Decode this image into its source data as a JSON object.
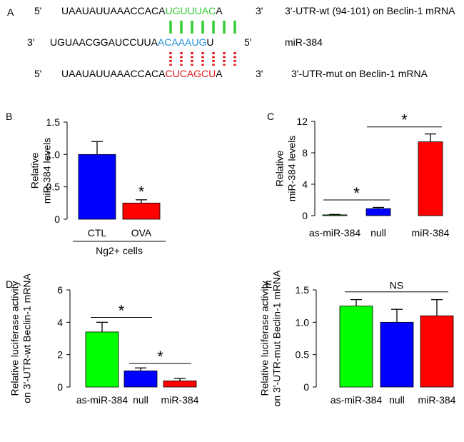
{
  "panel_a": {
    "label": "A",
    "wt": {
      "prime5": "5'",
      "seq_black": "UAAUAUUAAACCACA",
      "seq_site": "UGUUUAC",
      "seq_tail": "A",
      "prime3": "3'",
      "desc": "3'-UTR-wt (94-101) on Beclin-1 mRNA"
    },
    "mir": {
      "prime3": "3'",
      "seq_black": "UGUAACGGAUCCUUA",
      "seq_site": "ACAAAUG",
      "seq_tail": "U",
      "prime5": "5'",
      "desc": "miR-384"
    },
    "mut": {
      "prime5": "5'",
      "seq_black": "UAAUAUUAAACCACA",
      "seq_site": "CUCAGCU",
      "seq_tail": "A",
      "prime3": "3'",
      "desc": "3'-UTR-mut on Beclin-1 mRNA"
    },
    "colors": {
      "wt_site": "#33cc33",
      "mir_site": "#1f8fd6",
      "mut_site": "#e41a1c"
    }
  },
  "chart_data": [
    {
      "panel": "B",
      "type": "bar",
      "ylabel": [
        "Relative",
        "miR-384 levels"
      ],
      "ylim": [
        0,
        1.5
      ],
      "yticks": [
        "0",
        "0.5",
        "1.0",
        "1.5"
      ],
      "categories": [
        "CTL",
        "OVA"
      ],
      "values": [
        1.0,
        0.25
      ],
      "errors": [
        0.2,
        0.05
      ],
      "colors": [
        "#0000ff",
        "#ff0000"
      ],
      "group_label": "Ng2+ cells",
      "annotations": [
        {
          "text": "*",
          "bar": 1
        }
      ]
    },
    {
      "panel": "C",
      "type": "bar",
      "ylabel": [
        "Relative",
        "miR-384 levels"
      ],
      "ylim": [
        0,
        12
      ],
      "yticks": [
        "0",
        "4",
        "8",
        "12"
      ],
      "categories": [
        "as-miR-384",
        "null",
        "miR-384"
      ],
      "values": [
        0.1,
        0.9,
        9.4
      ],
      "errors": [
        0.05,
        0.15,
        1.0
      ],
      "colors": [
        "#00cc00",
        "#0000ff",
        "#ff0000"
      ],
      "brackets": [
        {
          "from": 0,
          "to": 1,
          "level": 2.0,
          "text": "*"
        },
        {
          "from": 1,
          "to": 2,
          "level": 11.3,
          "text": "*"
        }
      ]
    },
    {
      "panel": "D",
      "type": "bar",
      "ylabel": [
        "Relative luciferase activity",
        "on 3'-UTR-wt Beclin-1 mRNA"
      ],
      "ylim": [
        0,
        6
      ],
      "yticks": [
        "0",
        "2",
        "4",
        "6"
      ],
      "categories": [
        "as-miR-384",
        "null",
        "miR-384"
      ],
      "values": [
        3.4,
        1.0,
        0.38
      ],
      "errors": [
        0.6,
        0.18,
        0.15
      ],
      "colors": [
        "#00ff00",
        "#0000ff",
        "#ff0000"
      ],
      "brackets": [
        {
          "from": 0,
          "to": 1,
          "level": 4.3,
          "text": "*"
        },
        {
          "from": 1,
          "to": 2,
          "level": 1.45,
          "text": "*"
        }
      ]
    },
    {
      "panel": "E",
      "type": "bar",
      "ylabel": [
        "Relative luciferase activity",
        "on 3'-UTR-mut Beclin-1 mRNA"
      ],
      "ylim": [
        0,
        1.5
      ],
      "yticks": [
        "0",
        "0.5",
        "1.0",
        "1.5"
      ],
      "categories": [
        "as-miR-384",
        "null",
        "miR-384"
      ],
      "values": [
        1.25,
        1.0,
        1.1
      ],
      "errors": [
        0.1,
        0.2,
        0.25
      ],
      "colors": [
        "#00ff00",
        "#0000ff",
        "#ff0000"
      ],
      "brackets": [
        {
          "from": 0,
          "to": 2,
          "level": 1.47,
          "text": "NS"
        }
      ]
    }
  ]
}
